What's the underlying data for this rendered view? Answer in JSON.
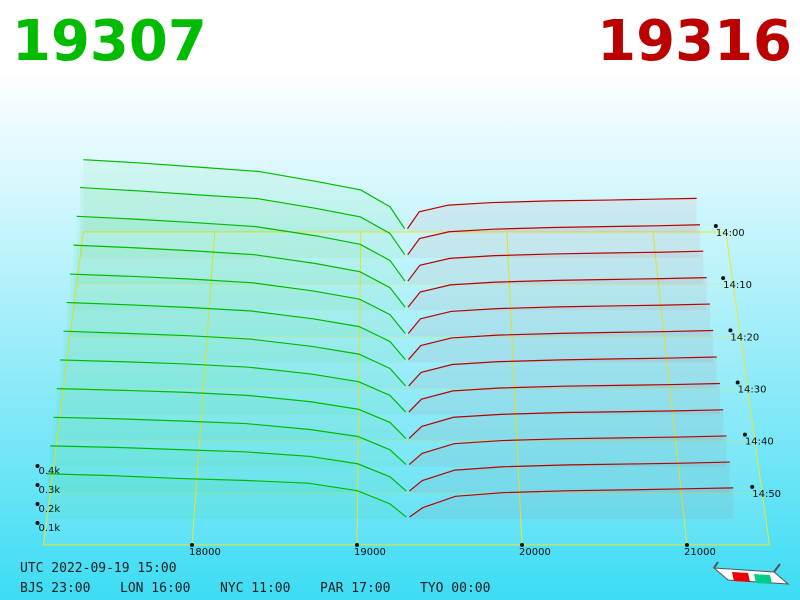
{
  "chart_data": {
    "type": "depth3d",
    "bid_price": "19307",
    "ask_price": "19316",
    "bid_color": "#00bb00",
    "ask_color": "#bb0000",
    "xlim": [
      17100,
      21500
    ],
    "xticks": [
      18000,
      19000,
      20000,
      21000
    ],
    "time_lim": [
      0,
      60
    ],
    "time_ticks": [
      {
        "value": 0,
        "label": "14:00"
      },
      {
        "value": 10,
        "label": "14:10"
      },
      {
        "value": 20,
        "label": "14:20"
      },
      {
        "value": 30,
        "label": "14:30"
      },
      {
        "value": 40,
        "label": "14:40"
      },
      {
        "value": 50,
        "label": "14:50"
      }
    ],
    "zticks": [
      {
        "value": 100,
        "label": "0.1k"
      },
      {
        "value": 200,
        "label": "0.2k"
      },
      {
        "value": 300,
        "label": "0.3k"
      },
      {
        "value": 400,
        "label": "0.4k"
      }
    ],
    "bid_prices": [
      17100,
      17500,
      17900,
      18300,
      18700,
      19000,
      19200,
      19300
    ],
    "ask_prices": [
      19320,
      19400,
      19600,
      19900,
      20300,
      20700,
      21000,
      21300
    ],
    "snapshots": [
      {
        "minute": 0,
        "bid_depth": [
          430,
          410,
          385,
          360,
          300,
          250,
          150,
          20
        ],
        "ask_depth": [
          20,
          120,
          160,
          175,
          185,
          190,
          195,
          200
        ]
      },
      {
        "minute": 5,
        "bid_depth": [
          415,
          395,
          372,
          350,
          292,
          242,
          145,
          20
        ],
        "ask_depth": [
          20,
          115,
          155,
          170,
          180,
          186,
          190,
          196
        ]
      },
      {
        "minute": 10,
        "bid_depth": [
          395,
          378,
          358,
          335,
          282,
          232,
          138,
          18
        ],
        "ask_depth": [
          18,
          110,
          150,
          166,
          176,
          182,
          186,
          192
        ]
      },
      {
        "minute": 15,
        "bid_depth": [
          375,
          360,
          342,
          320,
          270,
          222,
          130,
          18
        ],
        "ask_depth": [
          18,
          105,
          146,
          162,
          172,
          178,
          182,
          188
        ]
      },
      {
        "minute": 20,
        "bid_depth": [
          355,
          342,
          326,
          305,
          258,
          212,
          124,
          16
        ],
        "ask_depth": [
          16,
          100,
          142,
          158,
          168,
          174,
          178,
          184
        ]
      },
      {
        "minute": 25,
        "bid_depth": [
          338,
          325,
          310,
          290,
          246,
          202,
          118,
          16
        ],
        "ask_depth": [
          16,
          95,
          138,
          154,
          164,
          170,
          174,
          180
        ]
      },
      {
        "minute": 30,
        "bid_depth": [
          320,
          308,
          295,
          276,
          235,
          192,
          112,
          14
        ],
        "ask_depth": [
          14,
          90,
          134,
          150,
          160,
          166,
          170,
          176
        ]
      },
      {
        "minute": 35,
        "bid_depth": [
          302,
          292,
          280,
          262,
          224,
          182,
          106,
          14
        ],
        "ask_depth": [
          14,
          85,
          131,
          147,
          157,
          162,
          166,
          172
        ]
      },
      {
        "minute": 40,
        "bid_depth": [
          285,
          276,
          265,
          248,
          213,
          172,
          100,
          12
        ],
        "ask_depth": [
          12,
          78,
          128,
          144,
          154,
          159,
          163,
          169
        ]
      },
      {
        "minute": 45,
        "bid_depth": [
          268,
          260,
          248,
          234,
          202,
          164,
          92,
          12
        ],
        "ask_depth": [
          12,
          72,
          125,
          142,
          152,
          157,
          161,
          167
        ]
      },
      {
        "minute": 50,
        "bid_depth": [
          252,
          244,
          232,
          220,
          196,
          156,
          86,
          10
        ],
        "ask_depth": [
          10,
          66,
          122,
          140,
          150,
          155,
          159,
          165
        ]
      },
      {
        "minute": 55,
        "bid_depth": [
          240,
          230,
          215,
          205,
          190,
          150,
          80,
          10
        ],
        "ask_depth": [
          10,
          60,
          120,
          140,
          150,
          155,
          160,
          165
        ]
      }
    ]
  },
  "footer": {
    "utc": "UTC 2022-09-19 15:00",
    "bjs": "BJS 23:00",
    "lon": "LON 16:00",
    "nyc": "NYC 11:00",
    "par": "PAR 17:00",
    "tyo": "TYO 00:00"
  }
}
